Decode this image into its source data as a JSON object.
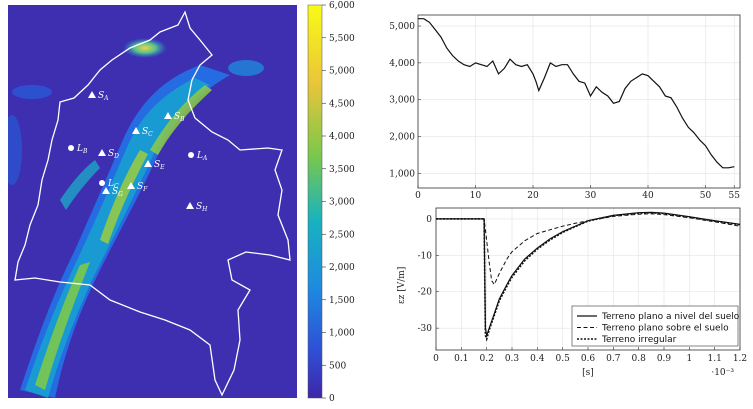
{
  "chart_data": [
    {
      "type": "heatmap",
      "title": "",
      "colorbar": {
        "range": [
          0,
          6000
        ],
        "ticks": [
          "0",
          "500",
          "1,000",
          "1,500",
          "2,000",
          "2,500",
          "3,000",
          "3,500",
          "4,000",
          "4,500",
          "5,000",
          "5,500",
          "6,000"
        ],
        "colors": [
          "#3e26a8",
          "#1e74f5",
          "#17b5c5",
          "#8ec93f",
          "#f1c832",
          "#f9fb15"
        ]
      },
      "markers": [
        {
          "label": "S",
          "sub": "A",
          "shape": "triangle"
        },
        {
          "label": "S",
          "sub": "B",
          "shape": "triangle"
        },
        {
          "label": "S",
          "sub": "C",
          "shape": "triangle"
        },
        {
          "label": "S",
          "sub": "D",
          "shape": "triangle"
        },
        {
          "label": "S",
          "sub": "E",
          "shape": "triangle"
        },
        {
          "label": "S",
          "sub": "F",
          "shape": "triangle"
        },
        {
          "label": "S",
          "sub": "G",
          "shape": "triangle"
        },
        {
          "label": "S",
          "sub": "H",
          "shape": "triangle"
        },
        {
          "label": "L",
          "sub": "A",
          "shape": "circle"
        },
        {
          "label": "L",
          "sub": "B",
          "shape": "circle"
        },
        {
          "label": "L",
          "sub": "C",
          "shape": "circle"
        }
      ]
    },
    {
      "type": "line",
      "title": "",
      "xlabel": "",
      "ylabel": "",
      "xlim": [
        0,
        56
      ],
      "ylim": [
        600,
        5300
      ],
      "xticks": [
        "0",
        "10",
        "20",
        "30",
        "40",
        "50",
        "55"
      ],
      "yticks": [
        "1,000",
        "2,000",
        "3,000",
        "4,000",
        "5,000"
      ],
      "grid": true,
      "series": [
        {
          "x": [
            0,
            1,
            2,
            3,
            4,
            5,
            6,
            7,
            8,
            9,
            10,
            11,
            12,
            13,
            14,
            15,
            16,
            17,
            18,
            19,
            20,
            20.5,
            21,
            22,
            23,
            24,
            25,
            26,
            27,
            28,
            29,
            30,
            31,
            32,
            33,
            34,
            35,
            36,
            37,
            38,
            39,
            40,
            41,
            42,
            43,
            44,
            45,
            46,
            47,
            48,
            49,
            50,
            51,
            52,
            53,
            54,
            55
          ],
          "y": [
            5200,
            5200,
            5100,
            4900,
            4700,
            4400,
            4200,
            4050,
            3950,
            3900,
            4000,
            3950,
            3900,
            4050,
            3700,
            3850,
            4100,
            3950,
            3900,
            3950,
            3700,
            3500,
            3250,
            3600,
            4000,
            3900,
            3950,
            3950,
            3700,
            3500,
            3450,
            3100,
            3350,
            3200,
            3100,
            2900,
            2950,
            3300,
            3500,
            3600,
            3700,
            3650,
            3500,
            3350,
            3100,
            3050,
            2800,
            2500,
            2250,
            2100,
            1900,
            1750,
            1500,
            1300,
            1150,
            1150,
            1180
          ],
          "color": "#111111"
        }
      ]
    },
    {
      "type": "line",
      "title": "",
      "xlabel": "[s]",
      "ylabel": "εz [V/m]",
      "xlim": [
        0,
        0.0012
      ],
      "ylim": [
        -36,
        3
      ],
      "x_multiplier": "·10⁻³",
      "xticks": [
        "0",
        "0.1",
        "0.2",
        "0.3",
        "0.4",
        "0.5",
        "0.6",
        "0.7",
        "0.8",
        "0.9",
        "1",
        "1.1",
        "1.2"
      ],
      "yticks": [
        "0",
        "-10",
        "-20",
        "-30"
      ],
      "grid": true,
      "legend": "bottom-right",
      "series": [
        {
          "name": "Terreno plano a nivel del suelo",
          "dash": "solid",
          "x": [
            0,
            0.00019,
            0.000195,
            0.0002,
            0.00021,
            0.00023,
            0.00025,
            0.00028,
            0.0003,
            0.00035,
            0.0004,
            0.00045,
            0.0005,
            0.00055,
            0.0006,
            0.0007,
            0.0008,
            0.00085,
            0.0009,
            0.001,
            0.0011,
            0.0012
          ],
          "y": [
            0,
            0,
            -30,
            -32,
            -30,
            -26,
            -22,
            -18,
            -15.5,
            -11,
            -8,
            -5.5,
            -3.5,
            -2,
            -0.5,
            1,
            1.7,
            1.8,
            1.6,
            0.6,
            -0.5,
            -1.5
          ]
        },
        {
          "name": "Terreno plano sobre el suelo",
          "dash": "dashed",
          "x": [
            0,
            0.00019,
            0.0002,
            0.00021,
            0.00022,
            0.00023,
            0.00025,
            0.00028,
            0.0003,
            0.00035,
            0.0004,
            0.00045,
            0.0005,
            0.00055,
            0.0006,
            0.0007,
            0.0008,
            0.00085,
            0.0009,
            0.001,
            0.0011,
            0.0012
          ],
          "y": [
            0,
            0,
            -6,
            -12,
            -17,
            -18,
            -15,
            -11,
            -9,
            -6,
            -4,
            -3,
            -2,
            -1.2,
            -0.5,
            0.7,
            1.3,
            1.4,
            1.2,
            0.3,
            -0.8,
            -2
          ]
        },
        {
          "name": "Terreno irregular",
          "dash": "dotted",
          "x": [
            0,
            0.00019,
            0.000195,
            0.0002,
            0.00021,
            0.00023,
            0.00025,
            0.00028,
            0.0003,
            0.00035,
            0.0004,
            0.00045,
            0.0005,
            0.00055,
            0.0006,
            0.0007,
            0.0008,
            0.00085,
            0.0009,
            0.001,
            0.0011,
            0.0012
          ],
          "y": [
            0,
            0,
            -32,
            -33,
            -30.5,
            -26.5,
            -22.5,
            -18.5,
            -16,
            -11.5,
            -8.3,
            -5.8,
            -3.7,
            -2.1,
            -0.6,
            0.9,
            1.6,
            1.7,
            1.5,
            0.5,
            -0.6,
            -1.6
          ]
        }
      ]
    }
  ]
}
